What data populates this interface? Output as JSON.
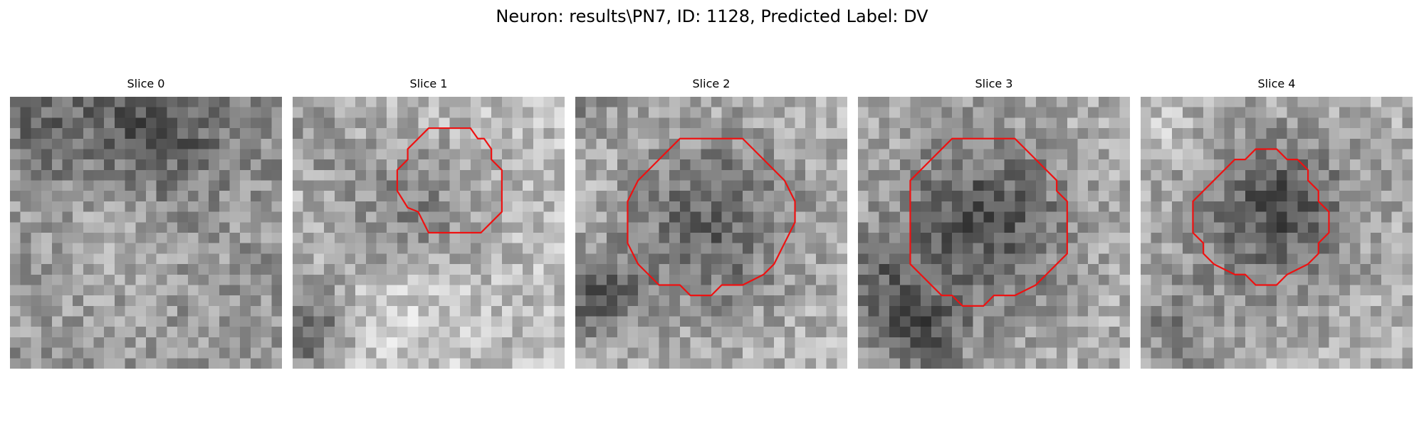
{
  "figure": {
    "title": "Neuron: results\\PN7, ID: 1128, Predicted Label: DV",
    "contour_color": "#ee1111"
  },
  "slices": [
    {
      "title": "Slice 0",
      "has_contour": false,
      "contour": []
    },
    {
      "title": "Slice 1",
      "has_contour": true,
      "contour": [
        [
          15,
          3
        ],
        [
          17,
          3
        ],
        [
          17.7,
          4
        ],
        [
          18.3,
          4
        ],
        [
          19,
          5
        ],
        [
          19,
          6
        ],
        [
          20,
          7
        ],
        [
          20,
          11
        ],
        [
          19,
          12
        ],
        [
          18,
          13
        ],
        [
          13,
          13
        ],
        [
          12,
          11
        ],
        [
          11,
          10.6
        ],
        [
          10,
          9
        ],
        [
          10,
          7
        ],
        [
          11,
          6
        ],
        [
          11,
          5
        ],
        [
          12,
          4
        ],
        [
          13,
          3
        ]
      ]
    },
    {
      "title": "Slice 2",
      "has_contour": true,
      "contour": [
        [
          10,
          4
        ],
        [
          16,
          4
        ],
        [
          18,
          6
        ],
        [
          19,
          7
        ],
        [
          20,
          8
        ],
        [
          21,
          10
        ],
        [
          21,
          12
        ],
        [
          20,
          14
        ],
        [
          19.5,
          15
        ],
        [
          19,
          16
        ],
        [
          18,
          17
        ],
        [
          16,
          18
        ],
        [
          14,
          18
        ],
        [
          13,
          19
        ],
        [
          11,
          19
        ],
        [
          10,
          18
        ],
        [
          8,
          18
        ],
        [
          7,
          17
        ],
        [
          6,
          16
        ],
        [
          5,
          14
        ],
        [
          5,
          10
        ],
        [
          6,
          8
        ],
        [
          7,
          7
        ],
        [
          8,
          6
        ],
        [
          9,
          5
        ]
      ]
    },
    {
      "title": "Slice 3",
      "has_contour": true,
      "contour": [
        [
          9,
          4
        ],
        [
          15,
          4
        ],
        [
          17,
          6
        ],
        [
          18,
          7
        ],
        [
          19,
          8
        ],
        [
          19,
          9
        ],
        [
          20,
          10
        ],
        [
          20,
          15
        ],
        [
          19,
          16
        ],
        [
          18,
          17
        ],
        [
          17,
          18
        ],
        [
          15,
          19
        ],
        [
          13,
          19
        ],
        [
          12,
          20
        ],
        [
          10,
          20
        ],
        [
          9,
          19
        ],
        [
          8,
          19
        ],
        [
          7,
          18
        ],
        [
          6,
          17
        ],
        [
          5,
          16
        ],
        [
          5,
          8
        ],
        [
          6,
          7
        ],
        [
          7,
          6
        ],
        [
          8,
          5
        ]
      ]
    },
    {
      "title": "Slice 4",
      "has_contour": true,
      "contour": [
        [
          11,
          5
        ],
        [
          13,
          5
        ],
        [
          14,
          6
        ],
        [
          15,
          6
        ],
        [
          16,
          7
        ],
        [
          16,
          8
        ],
        [
          17,
          9
        ],
        [
          17,
          10
        ],
        [
          18,
          11
        ],
        [
          18,
          13
        ],
        [
          17,
          14
        ],
        [
          17,
          15
        ],
        [
          16,
          16
        ],
        [
          14,
          17
        ],
        [
          13,
          18
        ],
        [
          11,
          18
        ],
        [
          10,
          17
        ],
        [
          9,
          17
        ],
        [
          7,
          16
        ],
        [
          6,
          15
        ],
        [
          6,
          14
        ],
        [
          5,
          13
        ],
        [
          5,
          10
        ],
        [
          6,
          9
        ],
        [
          7,
          8
        ],
        [
          8,
          7
        ],
        [
          9,
          6
        ],
        [
          10,
          6
        ]
      ]
    }
  ]
}
